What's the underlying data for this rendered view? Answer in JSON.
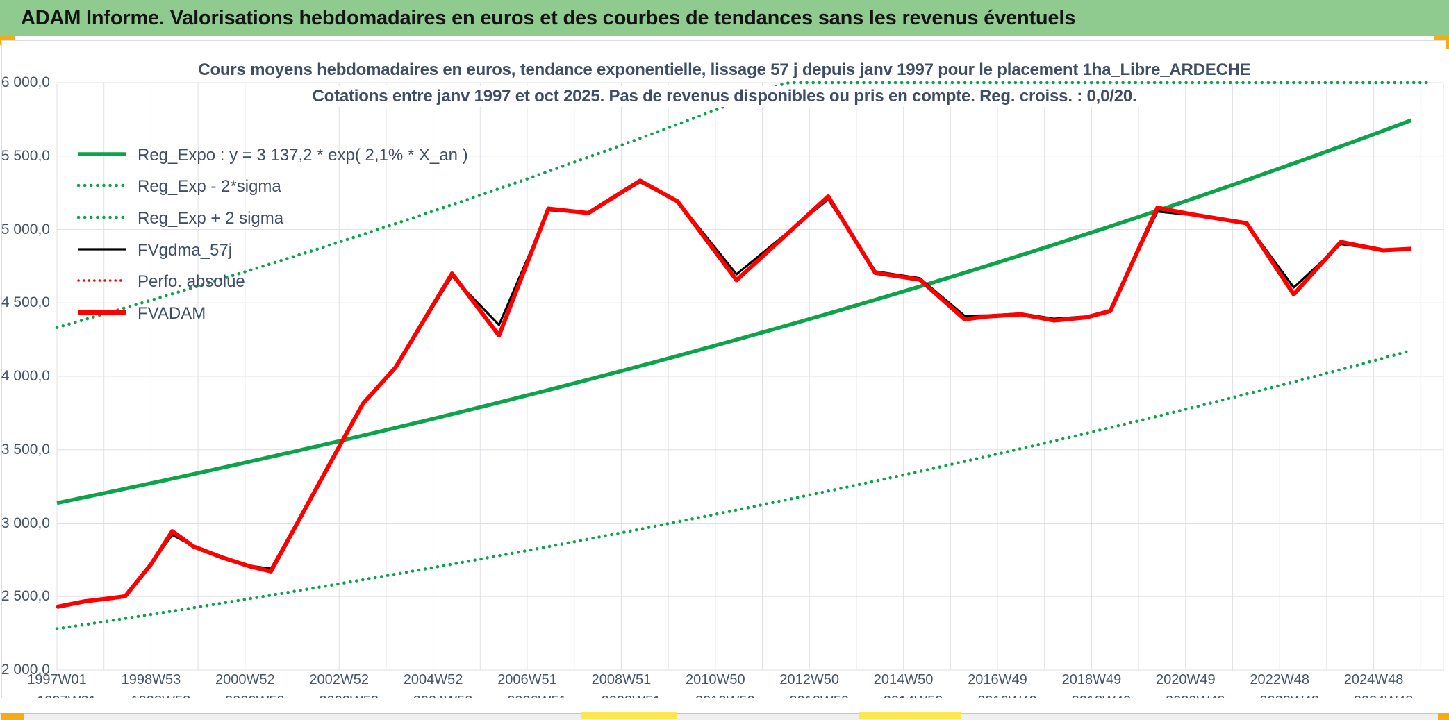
{
  "header": {
    "title": "ADAM Informe. Valorisations hebdomadaires en euros et des courbes de tendances sans les revenus éventuels"
  },
  "accents": {
    "header_green": "#8fcb8f",
    "orange_tab": "#f5ac14",
    "yellow_strip": "#fbe84f",
    "title_text": "#3f4e66",
    "axis_text": "#44546A",
    "gridline": "#e0e0e6"
  },
  "chart": {
    "title_line1": "Cours moyens hebdomadaires en euros, tendance exponentielle, lissage 57 j depuis janv 1997 pour le placement 1ha_Libre_ARDECHE",
    "title_line2": "Cotations entre janv 1997 et oct 2025. Pas de revenus disponibles ou pris en compte. Reg. croiss. : 0,0/20."
  },
  "chart_data": {
    "type": "line",
    "title": "Cours moyens hebdomadaires en euros, tendance exponentielle, lissage 57 j depuis janv 1997 pour le placement 1ha_Libre_ARDECHE",
    "subtitle": "Cotations entre janv 1997 et oct 2025. Pas de revenus disponibles ou pris en compte. Reg. croiss. : 0,0/20.",
    "x_unit": "years_since_jan_1997",
    "x_range": [
      0,
      28.8
    ],
    "ylim": [
      2000,
      6000
    ],
    "y_tick_step": 500,
    "grid": true,
    "legend_position": "top-left-inside",
    "y_tick_labels": [
      "6 000,0",
      "5 500,0",
      "5 000,0",
      "4 500,0",
      "4 000,0",
      "3 500,0",
      "3 000,0",
      "2 500,0",
      "2 000,0"
    ],
    "x_tick_labels": [
      "1997W01",
      "1998W53",
      "2000W52",
      "2002W52",
      "2004W52",
      "2006W51",
      "2008W51",
      "2010W50",
      "2012W50",
      "2014W50",
      "2016W49",
      "2018W49",
      "2020W49",
      "2022W48",
      "2024W48"
    ],
    "x_tick_years": [
      0,
      2,
      4,
      6,
      8,
      10,
      12,
      14,
      16,
      18,
      20,
      22,
      24,
      26,
      28
    ],
    "series": [
      {
        "name": "Reg_Expo : y = 3 137,2 * exp( 2,1% *  X_an )",
        "style": "solid",
        "color": "#0ca34a",
        "width": 5.5,
        "z": 1,
        "kind": "exp",
        "base": 3137.2,
        "rate_per_year": 0.021,
        "factor": 1.0,
        "t_range": [
          0,
          28.85
        ]
      },
      {
        "name": "Reg_Exp - 2*sigma",
        "style": "dotted",
        "color": "#0ca34a",
        "width": 4.5,
        "dot_gap": 9,
        "z": 2,
        "kind": "exp",
        "base": 3137.2,
        "rate_per_year": 0.021,
        "factor": 0.727,
        "t_range": [
          0,
          28.85
        ]
      },
      {
        "name": "Reg_Exp + 2 sigma",
        "style": "dotted",
        "color": "#0ca34a",
        "width": 4.5,
        "dot_gap": 9,
        "z": 3,
        "kind": "exp",
        "base": 3137.2,
        "rate_per_year": 0.021,
        "factor": 1.381,
        "clip_max": 6000,
        "t_range": [
          0,
          29.25
        ]
      },
      {
        "name": "FVgdma_57j",
        "style": "solid",
        "color": "#000000",
        "width": 3.2,
        "z": 5,
        "points": [
          [
            0,
            2432
          ],
          [
            0.6,
            2470
          ],
          [
            1.1,
            2490
          ],
          [
            1.45,
            2506
          ],
          [
            2.0,
            2722
          ],
          [
            2.45,
            2920
          ],
          [
            2.9,
            2845
          ],
          [
            3.5,
            2772
          ],
          [
            4.1,
            2710
          ],
          [
            4.55,
            2690
          ],
          [
            6.06,
            3552
          ],
          [
            6.51,
            3810
          ],
          [
            7.2,
            4058
          ],
          [
            8.4,
            4682
          ],
          [
            9.4,
            4350
          ],
          [
            10.45,
            5132
          ],
          [
            11.3,
            5110
          ],
          [
            12.4,
            5322
          ],
          [
            13.2,
            5192
          ],
          [
            14.45,
            4695
          ],
          [
            16.4,
            5205
          ],
          [
            17.4,
            4715
          ],
          [
            18.35,
            4668
          ],
          [
            19.3,
            4412
          ],
          [
            19.8,
            4415
          ],
          [
            20.5,
            4428
          ],
          [
            21.2,
            4392
          ],
          [
            21.9,
            4408
          ],
          [
            22.4,
            4452
          ],
          [
            23.4,
            5122
          ],
          [
            24.1,
            5100
          ],
          [
            25.3,
            5040
          ],
          [
            26.3,
            4605
          ],
          [
            27.3,
            4900
          ],
          [
            28.2,
            4860
          ],
          [
            28.8,
            4862
          ]
        ]
      },
      {
        "name": "Perfo. absolue",
        "style": "dotted",
        "color": "#ff0000",
        "width": 3.5,
        "dot_gap": 7.5,
        "z": 4,
        "same_as": "FVADAM"
      },
      {
        "name": "FVADAM",
        "style": "solid",
        "color": "#ff0000",
        "width": 6,
        "z": 6,
        "points": [
          [
            0,
            2430
          ],
          [
            0.6,
            2468
          ],
          [
            1.1,
            2487
          ],
          [
            1.45,
            2502
          ],
          [
            2.0,
            2720
          ],
          [
            2.45,
            2945
          ],
          [
            2.9,
            2842
          ],
          [
            3.5,
            2768
          ],
          [
            4.1,
            2706
          ],
          [
            4.55,
            2672
          ],
          [
            6.06,
            3555
          ],
          [
            6.51,
            3815
          ],
          [
            7.2,
            4060
          ],
          [
            8.4,
            4700
          ],
          [
            9.4,
            4278
          ],
          [
            10.45,
            5142
          ],
          [
            11.3,
            5112
          ],
          [
            12.4,
            5332
          ],
          [
            13.2,
            5190
          ],
          [
            14.45,
            4655
          ],
          [
            16.4,
            5225
          ],
          [
            17.4,
            4705
          ],
          [
            18.35,
            4658
          ],
          [
            19.3,
            4388
          ],
          [
            19.8,
            4408
          ],
          [
            20.5,
            4422
          ],
          [
            21.2,
            4380
          ],
          [
            21.9,
            4402
          ],
          [
            22.4,
            4445
          ],
          [
            23.4,
            5148
          ],
          [
            24.1,
            5105
          ],
          [
            25.3,
            5042
          ],
          [
            26.3,
            4558
          ],
          [
            27.3,
            4915
          ],
          [
            28.2,
            4858
          ],
          [
            28.8,
            4868
          ]
        ]
      }
    ]
  }
}
